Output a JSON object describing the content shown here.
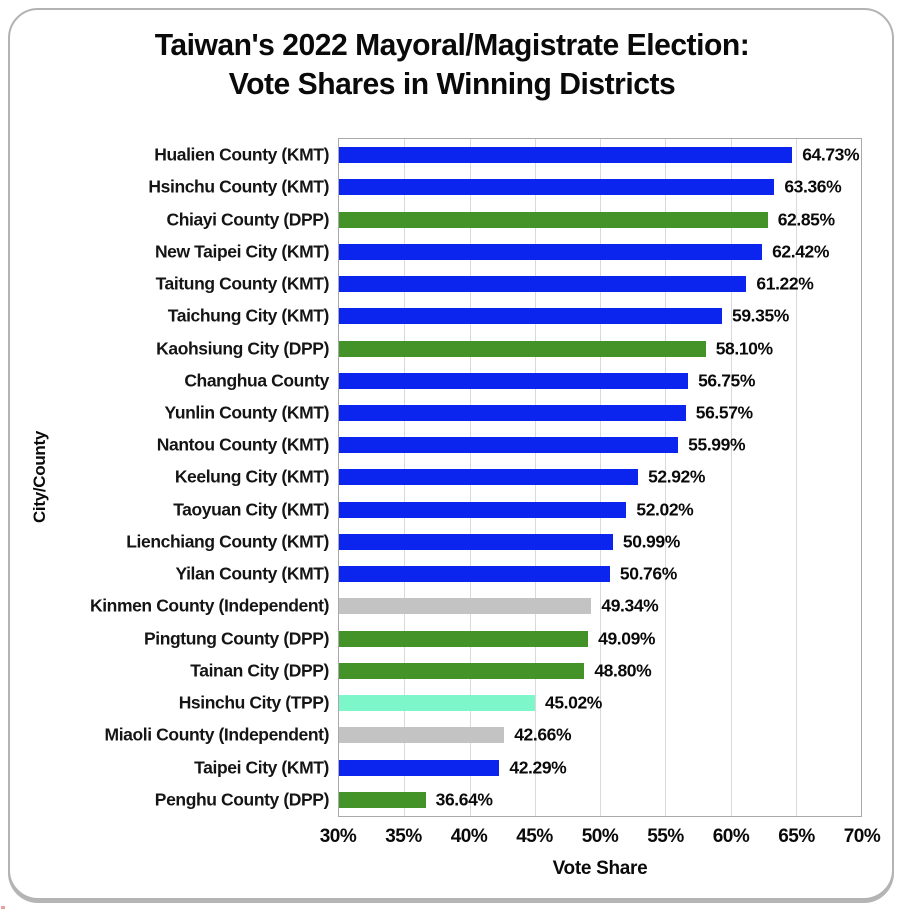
{
  "window": {
    "background": "#ffffff",
    "card_border_color": "#b3b3b3"
  },
  "chart_data": {
    "type": "bar",
    "orientation": "horizontal",
    "title_line1": "Taiwan's 2022 Mayoral/Magistrate Election:",
    "title_line2": "Vote Shares in Winning Districts",
    "xlabel": "Vote Share",
    "ylabel": "City/County",
    "xlim": [
      30,
      70
    ],
    "grid": "vertical",
    "x_ticks": [
      {
        "value": 30,
        "label": "30%"
      },
      {
        "value": 35,
        "label": "35%"
      },
      {
        "value": 40,
        "label": "40%"
      },
      {
        "value": 45,
        "label": "45%"
      },
      {
        "value": 50,
        "label": "50%"
      },
      {
        "value": 55,
        "label": "55%"
      },
      {
        "value": 60,
        "label": "60%"
      },
      {
        "value": 65,
        "label": "65%"
      },
      {
        "value": 70,
        "label": "70%"
      }
    ],
    "party_colors": {
      "KMT": "#0b24ee",
      "DPP": "#449329",
      "Independent": "#c3c3c3",
      "TPP": "#7df6c9"
    },
    "bars": [
      {
        "label": "Hualien County (KMT)",
        "value": 64.73,
        "value_label": "64.73%",
        "color": "#0b24ee"
      },
      {
        "label": "Hsinchu County (KMT)",
        "value": 63.36,
        "value_label": "63.36%",
        "color": "#0b24ee"
      },
      {
        "label": "Chiayi County (DPP)",
        "value": 62.85,
        "value_label": "62.85%",
        "color": "#449329"
      },
      {
        "label": "New Taipei City (KMT)",
        "value": 62.42,
        "value_label": "62.42%",
        "color": "#0b24ee"
      },
      {
        "label": "Taitung County (KMT)",
        "value": 61.22,
        "value_label": "61.22%",
        "color": "#0b24ee"
      },
      {
        "label": "Taichung City (KMT)",
        "value": 59.35,
        "value_label": "59.35%",
        "color": "#0b24ee"
      },
      {
        "label": "Kaohsiung City (DPP)",
        "value": 58.1,
        "value_label": "58.10%",
        "color": "#449329"
      },
      {
        "label": "Changhua County",
        "value": 56.75,
        "value_label": "56.75%",
        "color": "#0b24ee"
      },
      {
        "label": "Yunlin County (KMT)",
        "value": 56.57,
        "value_label": "56.57%",
        "color": "#0b24ee"
      },
      {
        "label": "Nantou County (KMT)",
        "value": 55.99,
        "value_label": "55.99%",
        "color": "#0b24ee"
      },
      {
        "label": "Keelung City (KMT)",
        "value": 52.92,
        "value_label": "52.92%",
        "color": "#0b24ee"
      },
      {
        "label": "Taoyuan City (KMT)",
        "value": 52.02,
        "value_label": "52.02%",
        "color": "#0b24ee"
      },
      {
        "label": "Lienchiang County (KMT)",
        "value": 50.99,
        "value_label": "50.99%",
        "color": "#0b24ee"
      },
      {
        "label": "Yilan County (KMT)",
        "value": 50.76,
        "value_label": "50.76%",
        "color": "#0b24ee"
      },
      {
        "label": "Kinmen County (Independent)",
        "value": 49.34,
        "value_label": "49.34%",
        "color": "#c3c3c3"
      },
      {
        "label": "Pingtung County (DPP)",
        "value": 49.09,
        "value_label": "49.09%",
        "color": "#449329"
      },
      {
        "label": "Tainan City (DPP)",
        "value": 48.8,
        "value_label": "48.80%",
        "color": "#449329"
      },
      {
        "label": "Hsinchu City (TPP)",
        "value": 45.02,
        "value_label": "45.02%",
        "color": "#7df6c9"
      },
      {
        "label": "Miaoli County (Independent)",
        "value": 42.66,
        "value_label": "42.66%",
        "color": "#c3c3c3"
      },
      {
        "label": "Taipei City (KMT)",
        "value": 42.29,
        "value_label": "42.29%",
        "color": "#0b24ee"
      },
      {
        "label": "Penghu County (DPP)",
        "value": 36.64,
        "value_label": "36.64%",
        "color": "#449329"
      }
    ]
  }
}
